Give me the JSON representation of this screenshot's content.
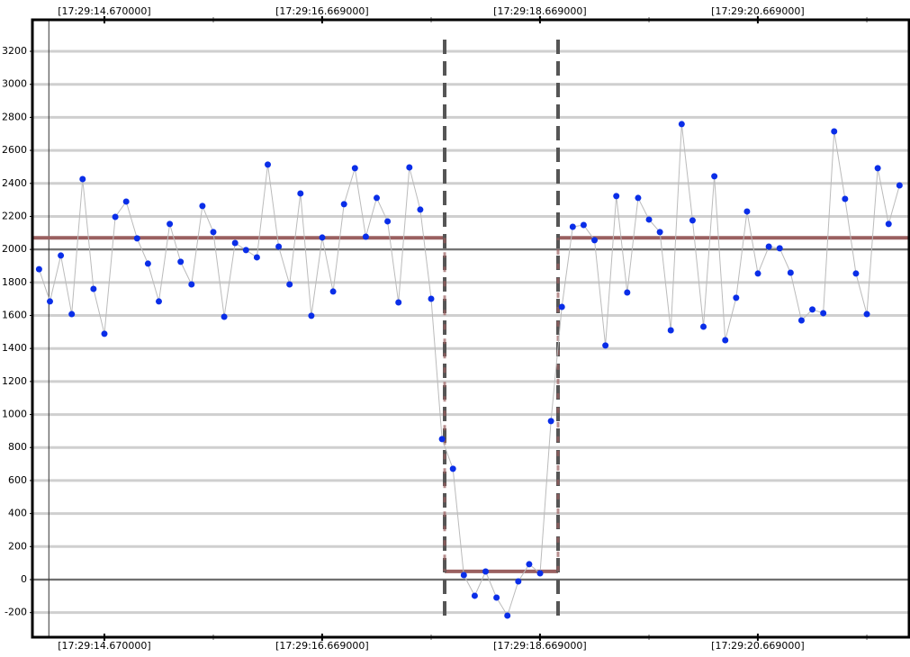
{
  "chart_data": {
    "type": "line",
    "x": [
      14.07,
      14.17,
      14.27,
      14.37,
      14.47,
      14.57,
      14.67,
      14.77,
      14.87,
      14.97,
      15.07,
      15.17,
      15.27,
      15.37,
      15.47,
      15.57,
      15.67,
      15.77,
      15.87,
      15.97,
      16.07,
      16.17,
      16.27,
      16.37,
      16.47,
      16.57,
      16.67,
      16.77,
      16.87,
      16.97,
      17.07,
      17.17,
      17.27,
      17.37,
      17.47,
      17.57,
      17.67,
      17.77,
      17.87,
      17.97,
      18.07,
      18.17,
      18.27,
      18.37,
      18.47,
      18.57,
      18.67,
      18.77,
      18.87,
      18.97,
      19.07,
      19.17,
      19.27,
      19.37,
      19.47,
      19.57,
      19.67,
      19.77,
      19.87,
      19.97,
      20.07,
      20.17,
      20.27,
      20.37,
      20.47,
      20.57,
      20.67,
      20.77,
      20.87,
      20.97,
      21.07,
      21.17,
      21.27,
      21.37,
      21.47,
      21.57,
      21.67,
      21.77,
      21.87,
      21.97
    ],
    "series": [
      {
        "color": "#0a2ee8",
        "line_color": "#bbbbbb",
        "values": [
          1880,
          1685,
          1963,
          1608,
          2426,
          1761,
          1489,
          2197,
          2290,
          2067,
          1914,
          1685,
          2154,
          1925,
          1788,
          2263,
          2105,
          1592,
          2039,
          1996,
          1952,
          2514,
          2017,
          1788,
          2339,
          1598,
          2072,
          1745,
          2274,
          2492,
          2077,
          2312,
          2170,
          1679,
          2497,
          2241,
          1701,
          851,
          671,
          27,
          -98,
          49,
          -109,
          -218,
          -11,
          93,
          38,
          960,
          1652,
          2137,
          2148,
          2056,
          1418,
          2323,
          1739,
          2312,
          2181,
          2105,
          1510,
          2759,
          2176,
          1532,
          2443,
          1450,
          1707,
          2230,
          1854,
          2017,
          2007,
          1859,
          1570,
          1636,
          1614,
          2715,
          2306,
          1854,
          1608,
          2492,
          2154,
          2388
        ]
      }
    ],
    "level_segments": [
      {
        "x": [
          14.009,
          17.794
        ],
        "value": 2070
      },
      {
        "x": [
          17.794,
          18.835
        ],
        "value": 50
      },
      {
        "x": [
          18.835,
          22.058
        ],
        "value": 2070
      }
    ],
    "level_color": "#9a6060",
    "markers_x": [
      17.794,
      18.835
    ],
    "cursor_x": 14.16,
    "xlim": [
      14.009,
      22.058
    ],
    "xticks": [
      {
        "value": 14.67,
        "label": "[17:29:14.670000]"
      },
      {
        "value": 16.669,
        "label": "[17:29:16.669000]"
      },
      {
        "value": 18.669,
        "label": "[17:29:18.669000]"
      },
      {
        "value": 20.669,
        "label": "[17:29:20.669000]"
      }
    ],
    "xminorticks": [
      15.67,
      17.67,
      19.67,
      21.67
    ],
    "ylim": [
      -349,
      3391
    ],
    "yticks": [
      -200,
      0,
      200,
      400,
      600,
      800,
      1000,
      1200,
      1400,
      1600,
      1800,
      2000,
      2200,
      2400,
      2600,
      2800,
      3000,
      3200
    ],
    "ymajorlines": [
      0,
      2000
    ],
    "grid": true
  }
}
